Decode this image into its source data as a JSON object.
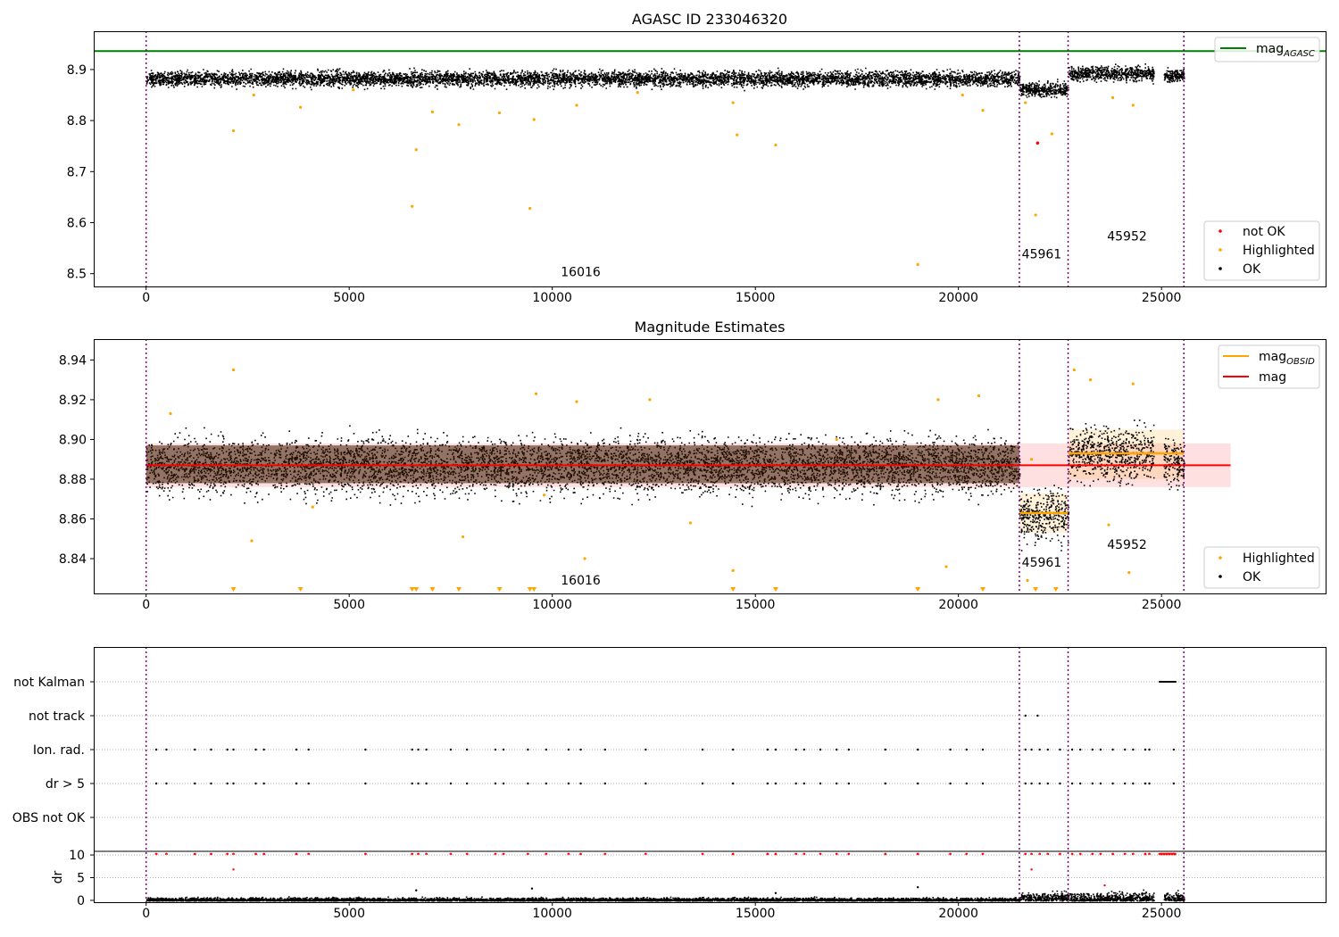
{
  "chart_data": [
    {
      "type": "scatter",
      "title": "AGASC ID 233046320",
      "xlim": [
        -1290,
        29040
      ],
      "ylim": [
        8.475,
        8.975
      ],
      "xticks": [
        0,
        5000,
        10000,
        15000,
        20000,
        25000
      ],
      "yticks": [
        8.5,
        8.6,
        8.7,
        8.8,
        8.9
      ],
      "ytick_labels": [
        "8.5",
        "8.6",
        "8.7",
        "8.8",
        "8.9"
      ],
      "vlines": [
        0,
        21500,
        22700,
        25550
      ],
      "hline": {
        "y": 8.936,
        "name_base": "mag",
        "name_sub": "AGASC",
        "color": "#008000"
      },
      "obsid_labels": [
        {
          "x": 10700,
          "y": 8.495,
          "text": "16016"
        },
        {
          "x": 22050,
          "y": 8.53,
          "text": "45961"
        },
        {
          "x": 24150,
          "y": 8.565,
          "text": "45952"
        }
      ],
      "ok_bands": [
        {
          "x0": 0,
          "x1": 21500,
          "center": 8.883,
          "spread": 0.013
        },
        {
          "x0": 21500,
          "x1": 22700,
          "center": 8.862,
          "spread": 0.012
        },
        {
          "x0": 22700,
          "x1": 24800,
          "center": 8.893,
          "spread": 0.012
        },
        {
          "x0": 25050,
          "x1": 25550,
          "center": 8.889,
          "spread": 0.01
        }
      ],
      "highlighted": [
        [
          2150,
          8.78
        ],
        [
          3800,
          8.826
        ],
        [
          6550,
          8.632
        ],
        [
          6650,
          8.743
        ],
        [
          7050,
          8.817
        ],
        [
          7700,
          8.792
        ],
        [
          8700,
          8.815
        ],
        [
          9450,
          8.628
        ],
        [
          9550,
          8.802
        ],
        [
          10600,
          8.83
        ],
        [
          14450,
          8.835
        ],
        [
          14550,
          8.772
        ],
        [
          15500,
          8.752
        ],
        [
          19000,
          8.518
        ],
        [
          20100,
          8.85
        ],
        [
          20600,
          8.82
        ],
        [
          21900,
          8.615
        ],
        [
          22300,
          8.774
        ],
        [
          21650,
          8.835
        ],
        [
          23800,
          8.845
        ],
        [
          24300,
          8.83
        ],
        [
          2650,
          8.85
        ],
        [
          5100,
          8.86
        ],
        [
          12100,
          8.855
        ]
      ],
      "not_ok": [
        [
          21950,
          8.756
        ]
      ],
      "legend_top": {
        "position": "top-right",
        "entries": [
          {
            "label_base": "mag",
            "label_sub": "AGASC",
            "color": "#008000"
          }
        ]
      },
      "legend_bottom": {
        "position": "lower-right",
        "entries": [
          {
            "label": "not OK",
            "color": "#ff0000"
          },
          {
            "label": "Highlighted",
            "color": "#ffa500"
          },
          {
            "label": "OK",
            "color": "#000000"
          }
        ]
      }
    },
    {
      "type": "scatter",
      "title": "Magnitude Estimates",
      "xlim": [
        -1290,
        29040
      ],
      "ylim": [
        8.8225,
        8.9505
      ],
      "xticks": [
        0,
        5000,
        10000,
        15000,
        20000,
        25000
      ],
      "yticks": [
        8.84,
        8.86,
        8.88,
        8.9,
        8.92,
        8.94
      ],
      "ytick_labels": [
        "8.84",
        "8.86",
        "8.88",
        "8.90",
        "8.92",
        "8.94"
      ],
      "vlines": [
        0,
        21500,
        22700,
        25550
      ],
      "mag": {
        "value": 8.887,
        "band": [
          8.876,
          8.898
        ],
        "x0": 0,
        "x1": 26700,
        "color": "#ff0000"
      },
      "mag_obsid": [
        {
          "x0": 21500,
          "x1": 22700,
          "value": 8.863,
          "band": [
            8.853,
            8.873
          ]
        },
        {
          "x0": 22700,
          "x1": 25550,
          "value": 8.893,
          "band": [
            8.88,
            8.905
          ]
        }
      ],
      "obsid_labels": [
        {
          "x": 10700,
          "y": 8.827,
          "text": "16016"
        },
        {
          "x": 22050,
          "y": 8.836,
          "text": "45961"
        },
        {
          "x": 24150,
          "y": 8.845,
          "text": "45952"
        }
      ],
      "ok_bands": [
        {
          "x0": 0,
          "x1": 21500,
          "center": 8.887,
          "spread": 0.012
        },
        {
          "x0": 21500,
          "x1": 22700,
          "center": 8.862,
          "spread": 0.011
        },
        {
          "x0": 22700,
          "x1": 24800,
          "center": 8.893,
          "spread": 0.012
        },
        {
          "x0": 25050,
          "x1": 25550,
          "center": 8.889,
          "spread": 0.01
        }
      ],
      "highlighted": [
        [
          2150,
          8.935
        ],
        [
          9600,
          8.923
        ],
        [
          10600,
          8.919
        ],
        [
          12400,
          8.92
        ],
        [
          19500,
          8.92
        ],
        [
          20500,
          8.922
        ],
        [
          21700,
          8.829
        ],
        [
          21800,
          8.89
        ],
        [
          22850,
          8.935
        ],
        [
          23250,
          8.93
        ],
        [
          24300,
          8.928
        ],
        [
          2600,
          8.849
        ],
        [
          7800,
          8.851
        ],
        [
          10800,
          8.84
        ],
        [
          14450,
          8.834
        ],
        [
          19700,
          8.836
        ],
        [
          23700,
          8.857
        ],
        [
          24200,
          8.833
        ],
        [
          9800,
          8.872
        ],
        [
          13400,
          8.858
        ],
        [
          17000,
          8.9
        ],
        [
          4100,
          8.866
        ],
        [
          600,
          8.913
        ]
      ],
      "markers_bottom": [
        2150,
        3800,
        6550,
        6650,
        7050,
        7700,
        8700,
        9450,
        9550,
        14450,
        15500,
        19000,
        20600,
        21900,
        22400
      ],
      "legend_top": {
        "position": "top-right",
        "entries": [
          {
            "label_base": "mag",
            "label_sub": "OBSID",
            "color": "#ffa500"
          },
          {
            "label": "mag",
            "color": "#ff0000"
          }
        ]
      },
      "legend_bottom": {
        "position": "lower-right",
        "entries": [
          {
            "label": "Highlighted",
            "color": "#ffa500"
          },
          {
            "label": "OK",
            "color": "#000000"
          }
        ]
      }
    },
    {
      "type": "scatter",
      "title": "",
      "xlim": [
        -1290,
        29040
      ],
      "categories": [
        "not Kalman",
        "not track",
        "Ion. rad.",
        "dr > 5",
        "OBS not OK"
      ],
      "flags": {
        "not Kalman": {
          "segments": [
            [
              24950,
              25350
            ]
          ]
        },
        "not track": {
          "points": [
            21650,
            21950
          ]
        },
        "Ion. rad.": {
          "points": [
            250,
            500,
            1200,
            1600,
            2000,
            2150,
            2700,
            2900,
            3700,
            4000,
            5400,
            6550,
            6700,
            6900,
            7500,
            7900,
            8600,
            8800,
            9400,
            9850,
            10400,
            10700,
            11300,
            12300,
            13700,
            14450,
            15300,
            15500,
            16000,
            16200,
            16600,
            17000,
            17300,
            18200,
            19000,
            19800,
            20200,
            20600,
            21650,
            21800,
            22000,
            22200,
            22500,
            22800,
            23000,
            23300,
            23500,
            23800,
            24100,
            24300,
            24600,
            24700,
            25300
          ]
        }
      },
      "dr": {
        "yticks": [
          0,
          5,
          10
        ],
        "ylabel": "dr",
        "ylim": [
          -0.6,
          10.6
        ],
        "xticks": [
          0,
          5000,
          10000,
          15000,
          20000,
          25000
        ],
        "high_points": [
          [
            2150,
            6.8
          ],
          [
            21800,
            6.8
          ],
          [
            23600,
            3.3
          ],
          [
            6650,
            2.2
          ],
          [
            9500,
            2.6
          ],
          [
            19000,
            2.9
          ],
          [
            15500,
            1.6
          ]
        ]
      }
    }
  ]
}
